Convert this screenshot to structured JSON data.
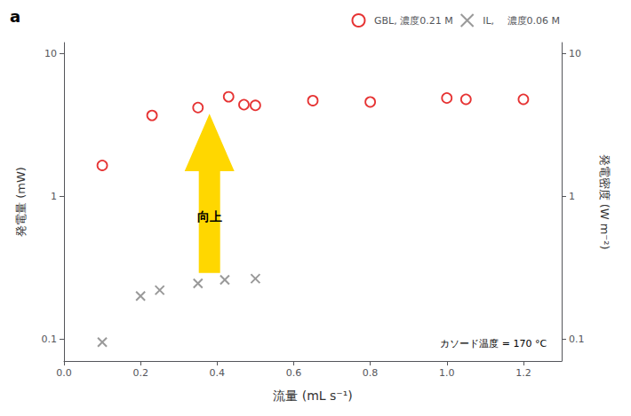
{
  "chart_data": {
    "type": "scatter",
    "title": "a",
    "xlabel": "流量 (mL s⁻¹)",
    "ylabel": "発電量 (mW)",
    "y2label": "発電密度 (W m⁻²)",
    "log": "y",
    "grid": false,
    "legend": "upper right",
    "xlim": [
      0.0,
      1.3
    ],
    "xticks": [
      {
        "value": 0,
        "label": "0.0"
      },
      0.2,
      0.4,
      0.6,
      0.8,
      {
        "value": 1,
        "label": "1.0"
      },
      1.2
    ],
    "ylim": [
      0.07,
      12
    ],
    "yticks": [
      0.1,
      1,
      10
    ],
    "y2lim": [
      0.07,
      12
    ],
    "y2ticks": [
      0.1,
      1,
      10
    ],
    "series": [
      {
        "name": "GBL, 濃度0.21 M",
        "color": "#e00000",
        "marker": "open_circle",
        "x": [
          0.1,
          0.23,
          0.35,
          0.43,
          0.47,
          0.5,
          0.65,
          0.8,
          1.0,
          1.05,
          1.2
        ],
        "values": [
          1.65,
          3.7,
          4.2,
          5.0,
          4.4,
          4.35,
          4.7,
          4.6,
          4.9,
          4.8,
          4.8
        ]
      },
      {
        "name": "IL,　 濃度0.06 M",
        "color": "#808080",
        "marker": "x",
        "x": [
          0.1,
          0.2,
          0.25,
          0.35,
          0.42,
          0.5
        ],
        "values": [
          0.095,
          0.2,
          0.22,
          0.245,
          0.26,
          0.265
        ]
      }
    ],
    "arrow": {
      "x": 0.38,
      "y_bottom": 0.29,
      "y_head_start": 1.5,
      "y_top": 3.8,
      "color": "#FFD700"
    },
    "annotations": [
      {
        "text": "カソード温度 = 170 °C"
      },
      {
        "text": "向上",
        "x": 0.38,
        "y": 0.72
      }
    ]
  }
}
